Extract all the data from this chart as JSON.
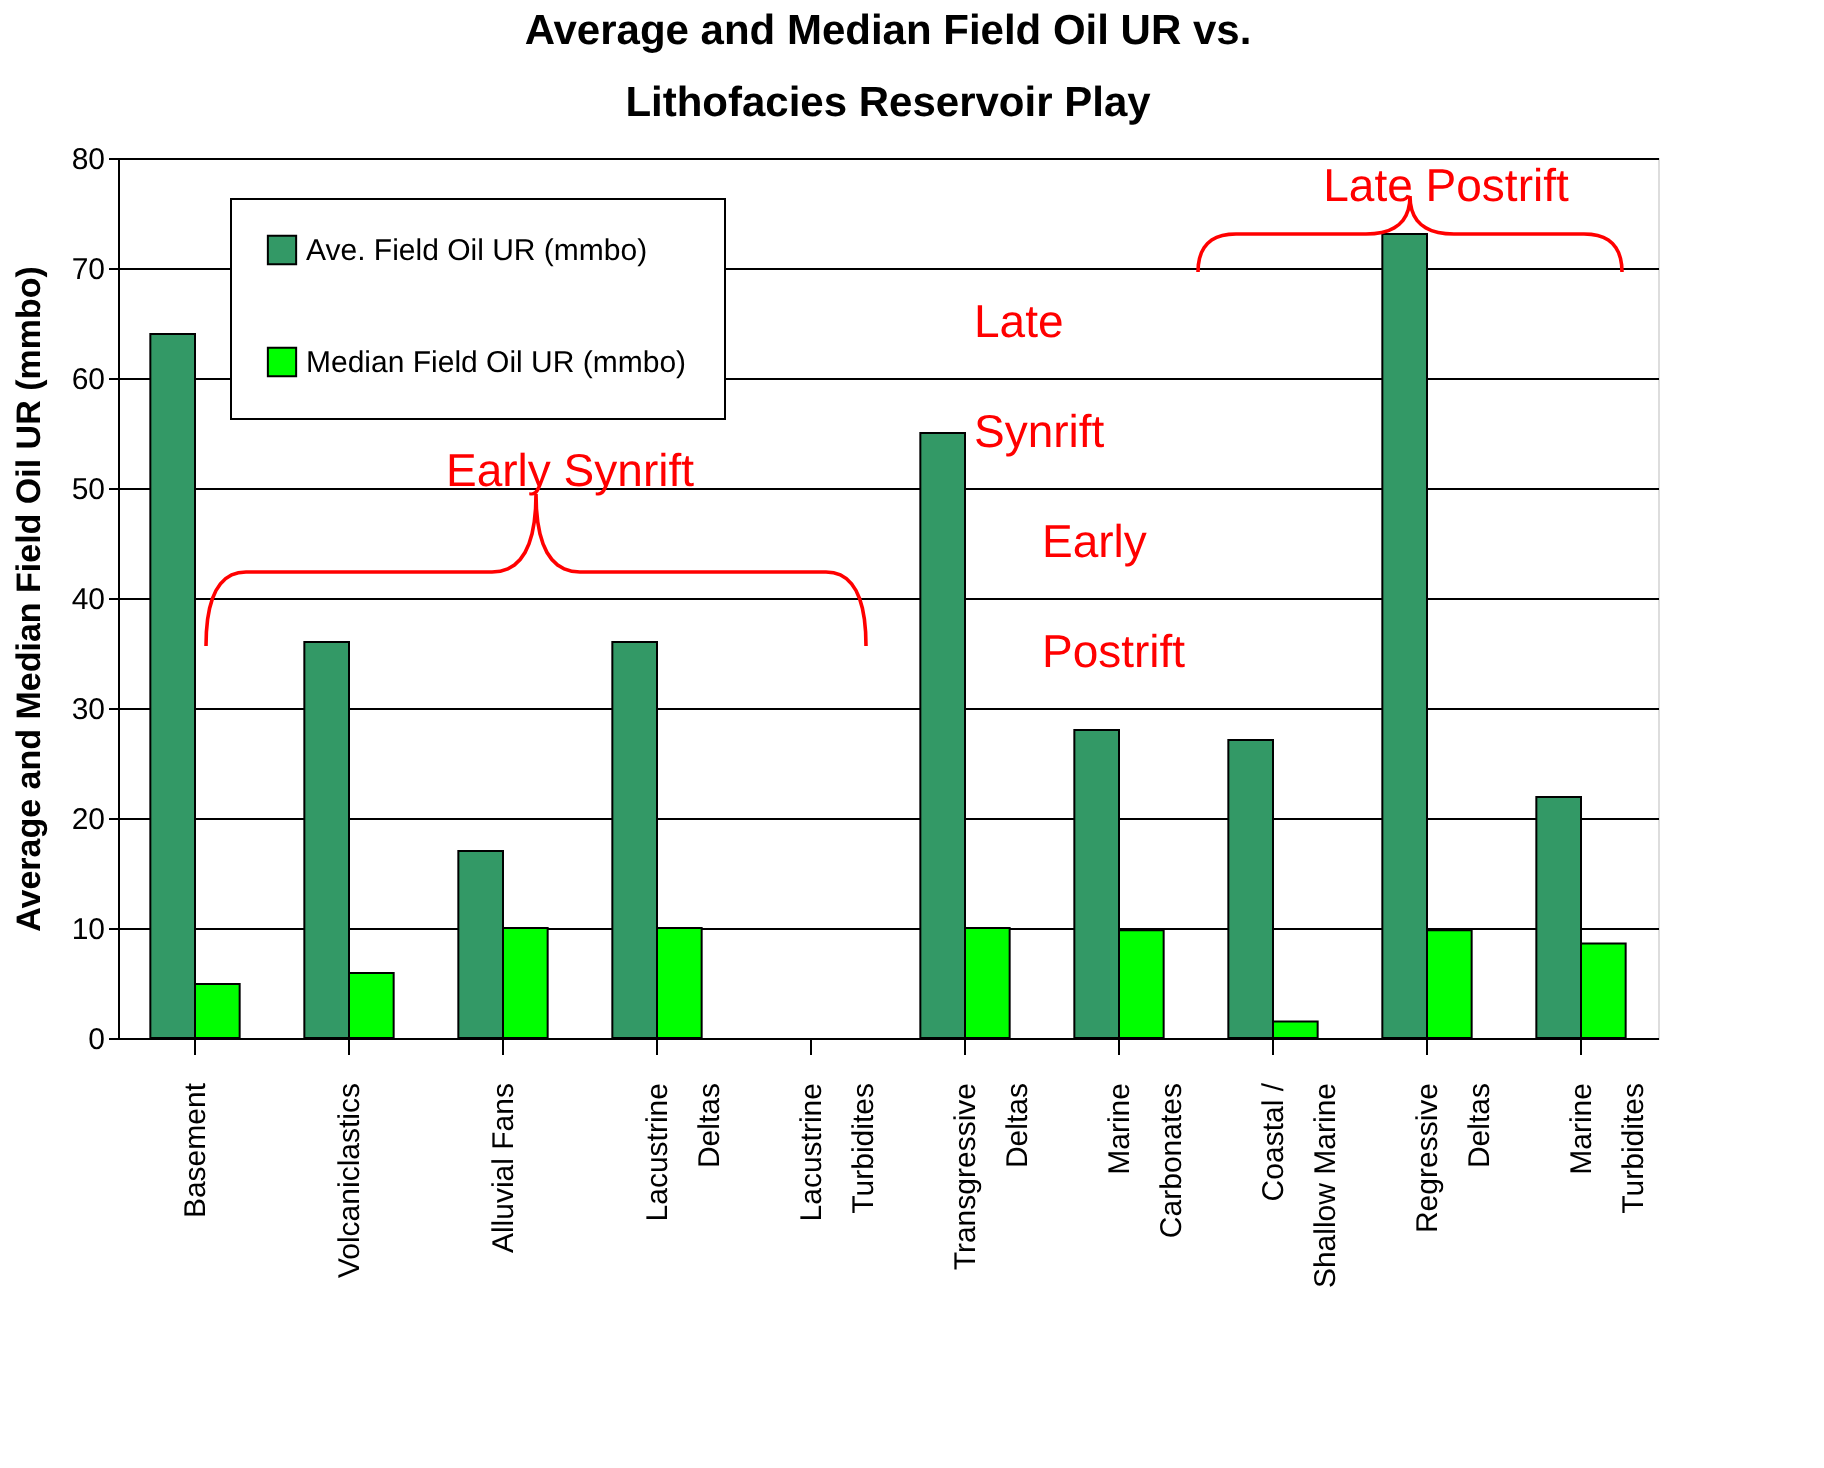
{
  "chart_data": {
    "type": "bar",
    "title": "Average and Median Field Oil UR vs.\nLithofacies Reservoir Play",
    "ylabel": "Average and Median Field Oil UR (mmbo)",
    "categories": [
      "Basement",
      "Volcaniclastics",
      "Alluvial Fans",
      "Lacustrine\nDeltas",
      "Lacustrine\nTurbidites",
      "Transgressive\nDeltas",
      "Marine\nCarbonates",
      "Coastal /\nShallow Marine",
      "Regressive\nDeltas",
      "Marine\nTurbidites"
    ],
    "series": [
      {
        "name": "Ave. Field Oil UR (mmbo)",
        "color": "#339966",
        "values": [
          64,
          36,
          17,
          36,
          null,
          55,
          28,
          27.1,
          73.1,
          21.9
        ]
      },
      {
        "name": "Median Field Oil UR (mmbo)",
        "color": "#00ff00",
        "values": [
          4.9,
          5.9,
          10,
          10,
          null,
          10,
          9.8,
          1.5,
          9.8,
          8.6
        ]
      }
    ],
    "ylim": [
      0,
      80
    ],
    "yticks": [
      0,
      10,
      20,
      30,
      40,
      50,
      60,
      70,
      80
    ],
    "grid": "y",
    "legend": "top left",
    "annotations": [
      "Early   Synrift",
      "Late\nSynrift",
      "Early\nPostrift",
      "Late   Postrift"
    ]
  }
}
